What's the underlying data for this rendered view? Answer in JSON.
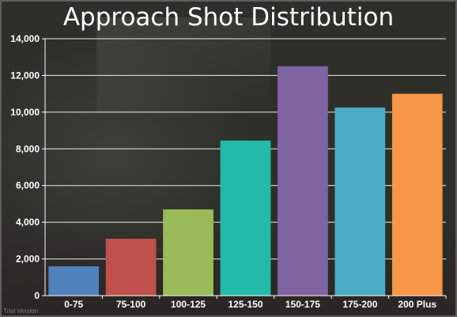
{
  "chart_data": {
    "type": "bar",
    "title": "Approach Shot Distribution",
    "xlabel": "",
    "ylabel": "",
    "categories": [
      "0-75",
      "75-100",
      "100-125",
      "125-150",
      "150-175",
      "175-200",
      "200 Plus"
    ],
    "values": [
      1600,
      3100,
      4700,
      8450,
      12500,
      10250,
      11000
    ],
    "colors": [
      "#4f81bd",
      "#c0504d",
      "#9bbb59",
      "#22bba9",
      "#8064a2",
      "#4bacc6",
      "#f79646"
    ],
    "ylim": [
      0,
      14000
    ],
    "yticks": [
      0,
      2000,
      4000,
      6000,
      8000,
      10000,
      12000,
      14000
    ],
    "ytick_labels": [
      "0",
      "2,000",
      "4,000",
      "6,000",
      "8,000",
      "10,000",
      "12,000",
      "14,000"
    ],
    "grid": true,
    "legend": "none"
  },
  "watermark": "Trial Version"
}
